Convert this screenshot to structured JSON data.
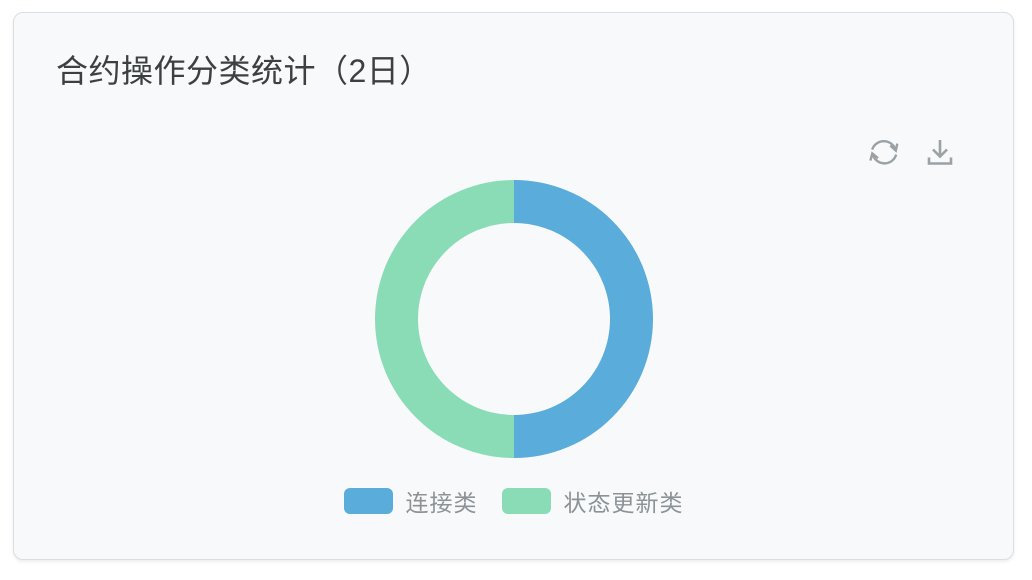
{
  "card": {
    "title": "合约操作分类统计（2日）",
    "background": "#f7f9fa",
    "actions": {
      "refresh_label": "refresh",
      "download_label": "download",
      "icon_color": "#9ba1a5"
    }
  },
  "chart_data": {
    "type": "pie",
    "variant": "donut",
    "title": "合约操作分类统计（2日）",
    "categories": [
      "连接类",
      "状态更新类"
    ],
    "values": [
      50,
      50
    ],
    "unit": "percent",
    "colors": [
      "#5aacdb",
      "#8adcb6"
    ],
    "start_angle_deg": 0,
    "clockwise": true,
    "legend_position": "bottom",
    "legend_text_color": "#8d9296"
  }
}
